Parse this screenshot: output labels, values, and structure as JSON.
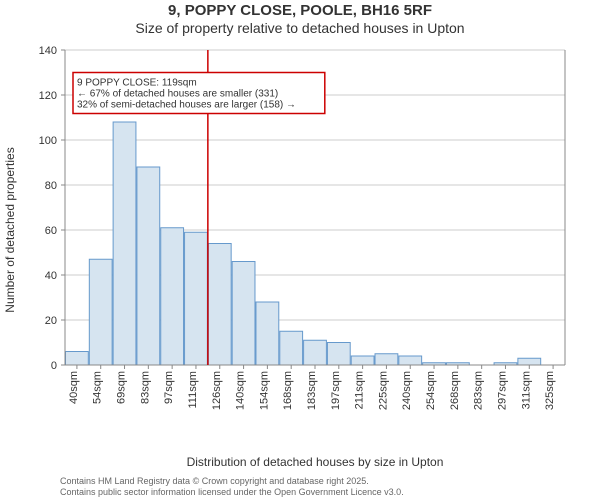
{
  "title_main": "9, POPPY CLOSE, POOLE, BH16 5RF",
  "title_sub": "Size of property relative to detached houses in Upton",
  "ylabel": "Number of detached properties",
  "xlabel": "Distribution of detached houses by size in Upton",
  "chart": {
    "type": "histogram",
    "bar_fill": "#d6e4f0",
    "bar_stroke": "#6699cc",
    "background_color": "#ffffff",
    "grid_color": "#cccccc",
    "axis_color": "#888888",
    "ylim": [
      0,
      140
    ],
    "ytick_step": 20,
    "xlim_index": [
      0,
      21
    ],
    "x_tick_labels": [
      "40sqm",
      "54sqm",
      "69sqm",
      "83sqm",
      "97sqm",
      "111sqm",
      "126sqm",
      "140sqm",
      "154sqm",
      "168sqm",
      "183sqm",
      "197sqm",
      "211sqm",
      "225sqm",
      "240sqm",
      "254sqm",
      "268sqm",
      "283sqm",
      "297sqm",
      "311sqm",
      "325sqm"
    ],
    "values": [
      6,
      47,
      108,
      88,
      61,
      59,
      54,
      46,
      28,
      15,
      11,
      10,
      4,
      5,
      4,
      1,
      1,
      0,
      1,
      3,
      0
    ],
    "label_fontsize": 12,
    "tick_fontsize": 11,
    "marker": {
      "index": 6,
      "color": "#cc0000",
      "line_width": 1.5
    },
    "annotation": {
      "lines": [
        "9 POPPY CLOSE: 119sqm",
        "← 67% of detached houses are smaller (331)",
        "32% of semi-detached houses are larger (158) →"
      ],
      "box_stroke": "#cc0000",
      "box_fill": "#ffffff",
      "text_color": "#333333",
      "fontsize": 10,
      "y_position": 130
    }
  },
  "footer_lines": [
    "Contains HM Land Registry data © Crown copyright and database right 2025.",
    "Contains public sector information licensed under the Open Government Licence v3.0."
  ]
}
